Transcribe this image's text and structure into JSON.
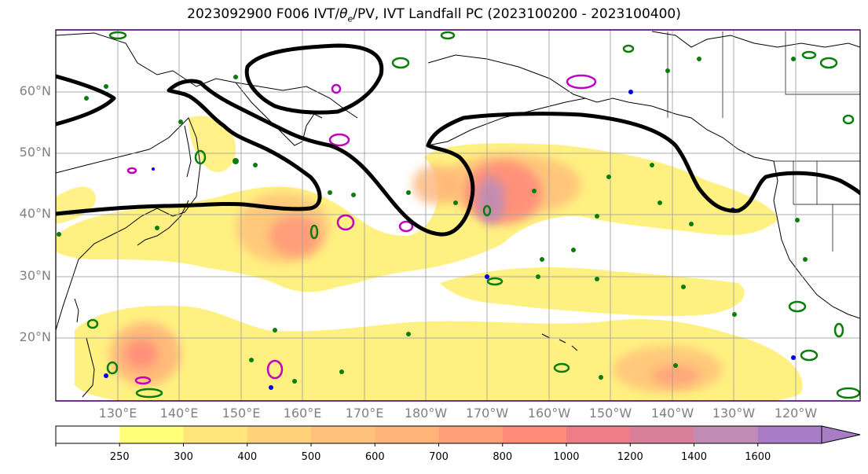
{
  "title": {
    "run": "2023092900 F006 IVT/",
    "theta": "θ",
    "theta_sub": "e",
    "rest": "/PV, IVT Landfall PC (2023100200 - 2023100400)"
  },
  "lat_labels": [
    "60°N",
    "50°N",
    "40°N",
    "30°N",
    "20°N"
  ],
  "lon_labels": [
    "130°E",
    "140°E",
    "150°E",
    "160°E",
    "170°E",
    "180°W",
    "170°W",
    "160°W",
    "150°W",
    "140°W",
    "130°W",
    "120°W"
  ],
  "colorbar": {
    "labels": [
      "250",
      "300",
      "400",
      "500",
      "600",
      "700",
      "800",
      "1000",
      "1200",
      "1400",
      "1600"
    ],
    "colors": [
      "#ffffff",
      "#ffff78",
      "#ffe57a",
      "#ffd27a",
      "#ffc27a",
      "#ffb47a",
      "#ffa07a",
      "#ff8c7a",
      "#ee7d88",
      "#d8809a",
      "#c08cb6",
      "#a87dc6"
    ]
  },
  "legend_semantics": {
    "fill": "IVT",
    "black_contour": "theta_e",
    "green_contour": "PV",
    "magenta_contour": "PV",
    "blue_marks": "PV"
  }
}
